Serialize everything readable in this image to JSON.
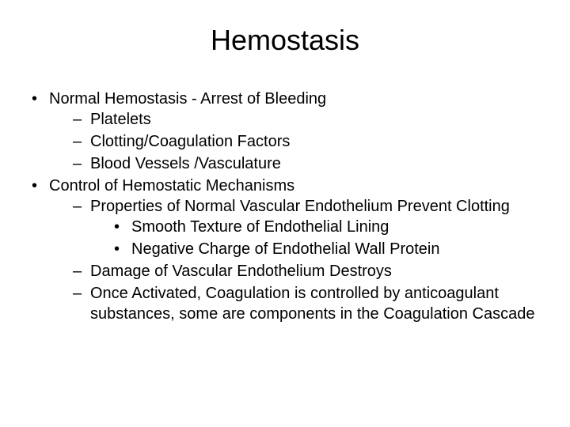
{
  "background_color": "#ffffff",
  "text_color": "#000000",
  "font_family": "Arial",
  "title": {
    "text": "Hemostasis",
    "fontsize": 36,
    "align": "center"
  },
  "body_fontsize": 20,
  "bullets": [
    {
      "text": "Normal Hemostasis - Arrest of Bleeding",
      "children": [
        {
          "text": "Platelets"
        },
        {
          "text": "Clotting/Coagulation Factors"
        },
        {
          "text": "Blood Vessels /Vasculature"
        }
      ]
    },
    {
      "text": "Control of Hemostatic Mechanisms",
      "children": [
        {
          "text": "Properties of Normal Vascular Endothelium Prevent Clotting",
          "children": [
            {
              "text": "Smooth Texture of Endothelial Lining"
            },
            {
              "text": "Negative Charge of Endothelial Wall Protein"
            }
          ]
        },
        {
          "text": "Damage of Vascular Endothelium Destroys"
        },
        {
          "text": "Once Activated, Coagulation is controlled by anticoagulant substances, some are components in the Coagulation Cascade"
        }
      ]
    }
  ]
}
